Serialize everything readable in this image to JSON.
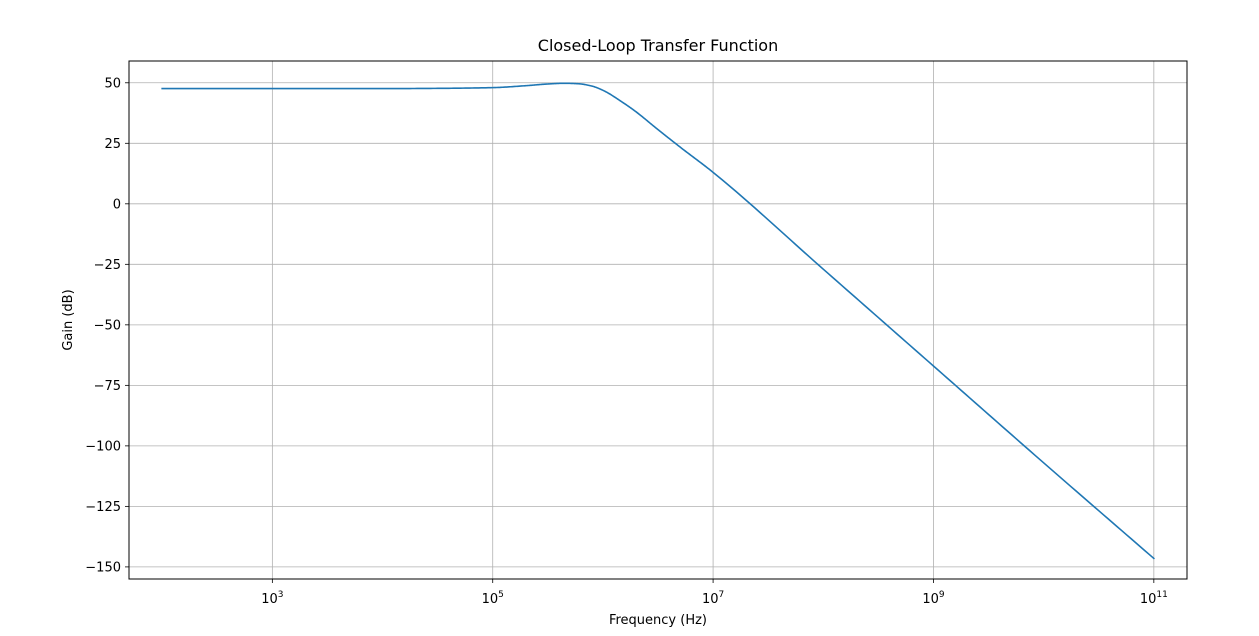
{
  "chart_data": {
    "type": "line",
    "title": "Closed-Loop Transfer Function",
    "xlabel": "Frequency (Hz)",
    "ylabel": "Gain (dB)",
    "xscale": "log",
    "xlim": [
      50,
      200000000000
    ],
    "ylim": [
      -155,
      59
    ],
    "grid": true,
    "line_color": "#1f77b4",
    "x_ticks": [
      {
        "value": 1000,
        "base": "10",
        "exp": "3"
      },
      {
        "value": 100000,
        "base": "10",
        "exp": "5"
      },
      {
        "value": 10000000,
        "base": "10",
        "exp": "7"
      },
      {
        "value": 1000000000,
        "base": "10",
        "exp": "9"
      },
      {
        "value": 100000000000,
        "base": "10",
        "exp": "11"
      }
    ],
    "y_ticks": [
      {
        "value": 50,
        "label": "50"
      },
      {
        "value": 25,
        "label": "25"
      },
      {
        "value": 0,
        "label": "0"
      },
      {
        "value": -25,
        "label": "−25"
      },
      {
        "value": -50,
        "label": "−50"
      },
      {
        "value": -75,
        "label": "−75"
      },
      {
        "value": -100,
        "label": "−100"
      },
      {
        "value": -125,
        "label": "−125"
      },
      {
        "value": -150,
        "label": "−150"
      }
    ],
    "series": [
      {
        "x": [
          100,
          1000,
          10000,
          31600,
          100000,
          200000,
          316000,
          447000,
          600000,
          800000,
          1000000,
          1500000,
          2000000,
          3000000,
          5000000,
          10000000,
          100000000,
          1000000000,
          10000000000,
          100000000000
        ],
        "values": [
          47.6,
          47.6,
          47.6,
          47.7,
          48.0,
          48.8,
          49.5,
          49.8,
          49.6,
          48.6,
          46.9,
          42.0,
          38.0,
          31.5,
          23.5,
          13.0,
          -27.0,
          -67.0,
          -107.0,
          -146.5
        ]
      }
    ]
  }
}
